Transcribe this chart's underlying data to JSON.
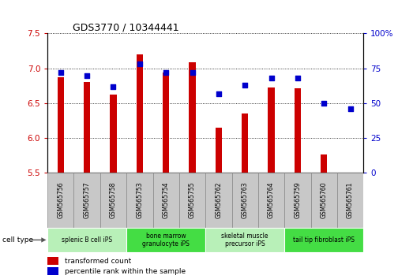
{
  "title": "GDS3770 / 10344441",
  "samples": [
    "GSM565756",
    "GSM565757",
    "GSM565758",
    "GSM565753",
    "GSM565754",
    "GSM565755",
    "GSM565762",
    "GSM565763",
    "GSM565764",
    "GSM565759",
    "GSM565760",
    "GSM565761"
  ],
  "transformed_count": [
    6.87,
    6.8,
    6.62,
    7.2,
    6.94,
    7.09,
    6.15,
    6.35,
    6.73,
    6.72,
    5.76,
    5.5
  ],
  "percentile_rank": [
    72,
    70,
    62,
    78,
    72,
    72,
    57,
    63,
    68,
    68,
    50,
    46
  ],
  "bar_bottom": 5.5,
  "ylim_left": [
    5.5,
    7.5
  ],
  "ylim_right": [
    0,
    100
  ],
  "yticks_left": [
    5.5,
    6.0,
    6.5,
    7.0,
    7.5
  ],
  "yticks_right": [
    0,
    25,
    50,
    75,
    100
  ],
  "bar_color": "#cc0000",
  "dot_color": "#0000cc",
  "cell_types": [
    {
      "label": "splenic B cell iPS",
      "start": 0,
      "end": 3,
      "color": "#b8f0b8"
    },
    {
      "label": "bone marrow\ngranulocyte iPS",
      "start": 3,
      "end": 6,
      "color": "#44dd44"
    },
    {
      "label": "skeletal muscle\nprecursor iPS",
      "start": 6,
      "end": 9,
      "color": "#b8f0b8"
    },
    {
      "label": "tail tip fibroblast iPS",
      "start": 9,
      "end": 12,
      "color": "#44dd44"
    }
  ],
  "legend_red_label": "transformed count",
  "legend_blue_label": "percentile rank within the sample",
  "cell_type_label": "cell type",
  "tick_label_color_left": "#cc0000",
  "tick_label_color_right": "#0000cc",
  "sample_box_color": "#c8c8c8",
  "bar_width": 0.25
}
